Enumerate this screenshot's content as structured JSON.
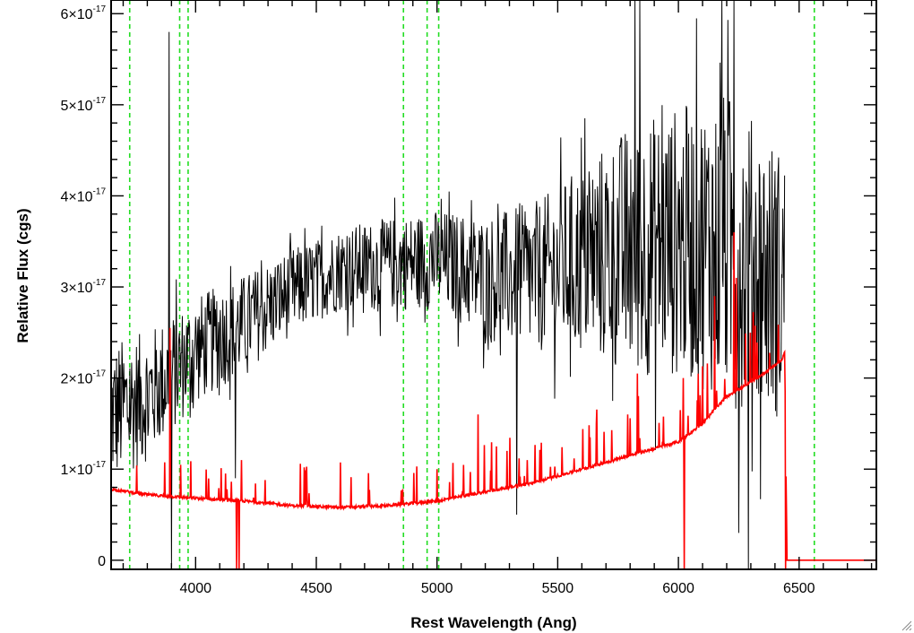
{
  "chart_data": {
    "type": "line",
    "title": "",
    "xlabel": "Rest Wavelength (Ang)",
    "ylabel": "Relative Flux (cgs)",
    "xlim": [
      3650,
      6820
    ],
    "ylim": [
      -1e-18,
      6.15e-17
    ],
    "x_ticks": [
      {
        "value": 4000,
        "label": "4000"
      },
      {
        "value": 4500,
        "label": "4500"
      },
      {
        "value": 5000,
        "label": "5000"
      },
      {
        "value": 5500,
        "label": "5500"
      },
      {
        "value": 6000,
        "label": "6000"
      },
      {
        "value": 6500,
        "label": "6500"
      }
    ],
    "y_ticks": [
      {
        "value": 0,
        "mantissa": "0",
        "exponent": ""
      },
      {
        "value": 1e-17,
        "mantissa": "1×10",
        "exponent": "-17"
      },
      {
        "value": 2e-17,
        "mantissa": "2×10",
        "exponent": "-17"
      },
      {
        "value": 3e-17,
        "mantissa": "3×10",
        "exponent": "-17"
      },
      {
        "value": 4e-17,
        "mantissa": "4×10",
        "exponent": "-17"
      },
      {
        "value": 5e-17,
        "mantissa": "5×10",
        "exponent": "-17"
      },
      {
        "value": 6e-17,
        "mantissa": "6×10",
        "exponent": "-17"
      }
    ],
    "vlines": [
      3727,
      3934,
      3969,
      4861,
      4959,
      5007,
      6563
    ],
    "series": [
      {
        "color": "#000000",
        "x_range": [
          3650,
          6440
        ],
        "trend_x": [
          3650,
          3800,
          4000,
          4200,
          4400,
          4600,
          4800,
          5000,
          5200,
          5400,
          5600,
          5800,
          6000,
          6200,
          6440
        ],
        "trend_y": [
          1.6e-17,
          1.8e-17,
          2.3e-17,
          2.6e-17,
          2.95e-17,
          3.2e-17,
          3.25e-17,
          3.3e-17,
          3.1e-17,
          3.1e-17,
          3.3e-17,
          3.4e-17,
          3.5e-17,
          3.45e-17,
          3e-17
        ],
        "noise_x": [
          3650,
          4000,
          4500,
          5000,
          5500,
          5800,
          6000,
          6200,
          6440
        ],
        "noise_amp": [
          8e-18,
          6e-18,
          4.5e-18,
          5.5e-18,
          9e-18,
          1.4e-17,
          1.5e-17,
          1.7e-17,
          1.5e-17
        ],
        "spikes": [
          {
            "x": 3890,
            "y": 5.8e-17
          },
          {
            "x": 3900,
            "y": -1e-18
          },
          {
            "x": 4165,
            "y": 9e-18
          },
          {
            "x": 5330,
            "y": 5e-18
          },
          {
            "x": 5820,
            "y": 6.15e-17
          },
          {
            "x": 5840,
            "y": 6.15e-17
          },
          {
            "x": 6180,
            "y": 6.15e-17
          },
          {
            "x": 6230,
            "y": 6.15e-17
          },
          {
            "x": 6290,
            "y": -1e-18
          },
          {
            "x": 6250,
            "y": 3e-18
          }
        ]
      },
      {
        "color": "#ff0000",
        "x": [
          3650,
          3800,
          4000,
          4200,
          4400,
          4600,
          4800,
          5000,
          5200,
          5400,
          5600,
          5800,
          6000,
          6100,
          6200,
          6300,
          6430,
          6440,
          6450,
          6820
        ],
        "y": [
          7.8e-18,
          7.2e-18,
          6.8e-18,
          6.5e-18,
          6e-18,
          5.8e-18,
          6e-18,
          6.5e-18,
          7.5e-18,
          8.5e-18,
          1e-17,
          1.15e-17,
          1.3e-17,
          1.5e-17,
          1.8e-17,
          1.95e-17,
          2.2e-17,
          2.3e-17,
          0,
          0
        ],
        "dips": [
          {
            "x": 4170,
            "y": -1e-18
          },
          {
            "x": 4180,
            "y": -1e-18
          },
          {
            "x": 6025,
            "y": -1e-18
          },
          {
            "x": 6445,
            "y": -1e-18
          }
        ],
        "spikes": [
          {
            "x": 3895,
            "y": 2.55e-17
          },
          {
            "x": 4190,
            "y": 1.1e-17
          },
          {
            "x": 5000,
            "y": 1e-17
          },
          {
            "x": 5170,
            "y": 1.6e-17
          },
          {
            "x": 5290,
            "y": 1.2e-17
          },
          {
            "x": 5660,
            "y": 1.5e-17
          },
          {
            "x": 5790,
            "y": 1.6e-17
          },
          {
            "x": 5830,
            "y": 2.05e-17
          },
          {
            "x": 6020,
            "y": 2e-17
          },
          {
            "x": 6150,
            "y": 2.9e-17
          },
          {
            "x": 6230,
            "y": 3.6e-17
          },
          {
            "x": 6240,
            "y": 3.1e-17
          }
        ]
      }
    ],
    "colors": {
      "vline": "#22dd22",
      "axis": "#000000"
    }
  }
}
